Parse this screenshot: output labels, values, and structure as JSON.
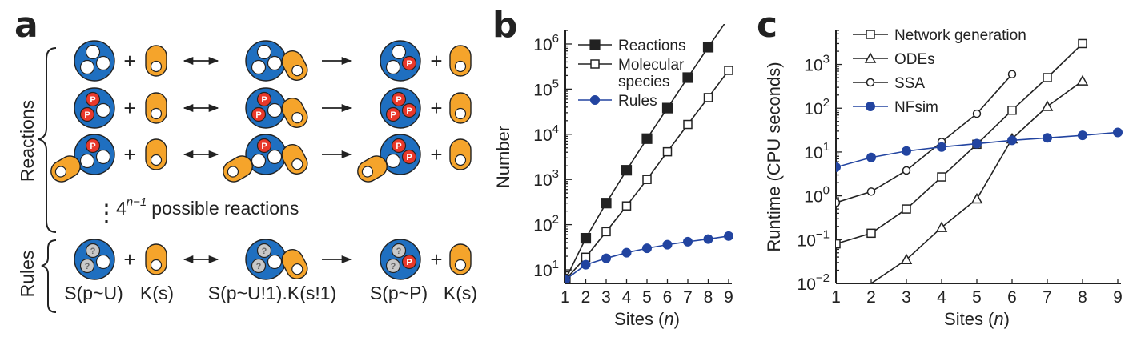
{
  "panel_labels": {
    "a": "a",
    "b": "b",
    "c": "c"
  },
  "panel_a": {
    "group_reactions_label": "Reactions",
    "group_rules_label": "Rules",
    "ellipsis": "⋮",
    "reactions_count_base": "4",
    "reactions_count_exponent": "n−1",
    "reactions_count_text": "possible reactions",
    "plus_symbol": "+",
    "site_p_label": "P",
    "site_unknown_label": "?",
    "rule_labels": [
      "S(p~U)",
      "K(s)",
      "S(p~U!1).K(s!1)",
      "S(p~P)",
      "K(s)"
    ],
    "colors": {
      "substrate": "#1f6fc0",
      "kinase": "#f5a42b",
      "phospho": "#e8382a",
      "unknown": "#c8c8c8"
    }
  },
  "chart_data": [
    {
      "type": "line",
      "panel": "b",
      "ylabel": "Number",
      "xlabel_prefix": "Sites (",
      "xlabel_var": "n",
      "xlabel_suffix": ")",
      "yscale": "log",
      "ylim": [
        5,
        2000000
      ],
      "xlim": [
        1,
        9
      ],
      "x": [
        1,
        2,
        3,
        4,
        5,
        6,
        7,
        8,
        9
      ],
      "x_tick_labels": [
        "1",
        "2",
        "3",
        "4",
        "5",
        "6",
        "7",
        "8",
        "9"
      ],
      "y_tick_labels": [
        {
          "value": 10,
          "base": "10",
          "exp": "1"
        },
        {
          "value": 100,
          "base": "10",
          "exp": "2"
        },
        {
          "value": 1000,
          "base": "10",
          "exp": "3"
        },
        {
          "value": 10000,
          "base": "10",
          "exp": "4"
        },
        {
          "value": 100000,
          "base": "10",
          "exp": "5"
        },
        {
          "value": 1000000,
          "base": "10",
          "exp": "6"
        }
      ],
      "legend_position": "top-left",
      "series": [
        {
          "name": "Reactions",
          "marker": "filled-square",
          "color": "#222222",
          "values": [
            6,
            50,
            300,
            1600,
            8000,
            38000,
            180000,
            850000,
            3800000
          ]
        },
        {
          "name": "Molecular species",
          "name_lines": [
            "Molecular",
            "species"
          ],
          "marker": "open-square",
          "color": "#222222",
          "values": [
            6,
            19,
            70,
            260,
            1000,
            4100,
            16500,
            65000,
            260000
          ]
        },
        {
          "name": "Rules",
          "marker": "filled-circle",
          "color": "#2244a0",
          "values": [
            6,
            13,
            18,
            24,
            30,
            36,
            42,
            48,
            56
          ]
        }
      ]
    },
    {
      "type": "line",
      "panel": "c",
      "ylabel": "Runtime (CPU seconds)",
      "xlabel_prefix": "Sites (",
      "xlabel_var": "n",
      "xlabel_suffix": ")",
      "yscale": "log",
      "ylim": [
        0.01,
        6000
      ],
      "xlim": [
        1,
        9
      ],
      "x_tick_labels": [
        "1",
        "2",
        "3",
        "4",
        "5",
        "6",
        "7",
        "8",
        "9"
      ],
      "y_tick_labels": [
        {
          "value": 0.01,
          "base": "10",
          "exp": "−2"
        },
        {
          "value": 0.1,
          "base": "10",
          "exp": "−1"
        },
        {
          "value": 1,
          "base": "10",
          "exp": "0"
        },
        {
          "value": 10,
          "base": "10",
          "exp": "1"
        },
        {
          "value": 100,
          "base": "10",
          "exp": "2"
        },
        {
          "value": 1000,
          "base": "10",
          "exp": "3"
        }
      ],
      "legend_position": "top-left",
      "series": [
        {
          "name": "Network generation",
          "marker": "open-square",
          "color": "#222222",
          "x": [
            1,
            2,
            3,
            4,
            5,
            6,
            7,
            8
          ],
          "values": [
            0.08,
            0.14,
            0.5,
            2.7,
            15,
            90,
            500,
            3000
          ]
        },
        {
          "name": "ODEs",
          "marker": "open-triangle",
          "color": "#222222",
          "x": [
            2,
            3,
            4,
            5,
            6,
            7,
            8
          ],
          "values": [
            0.01,
            0.035,
            0.19,
            0.85,
            20,
            110,
            420
          ],
          "extends_below": true
        },
        {
          "name": "SSA",
          "marker": "open-circle",
          "color": "#222222",
          "x": [
            1,
            2,
            3,
            4,
            5,
            6
          ],
          "values": [
            0.7,
            1.25,
            3.8,
            17,
            75,
            600
          ]
        },
        {
          "name": "NFsim",
          "marker": "filled-circle",
          "color": "#2244a0",
          "x": [
            1,
            2,
            3,
            4,
            5,
            6,
            7,
            8,
            9
          ],
          "values": [
            4.5,
            7.5,
            10.5,
            13,
            15.5,
            18.5,
            21,
            24,
            28
          ]
        }
      ]
    }
  ]
}
